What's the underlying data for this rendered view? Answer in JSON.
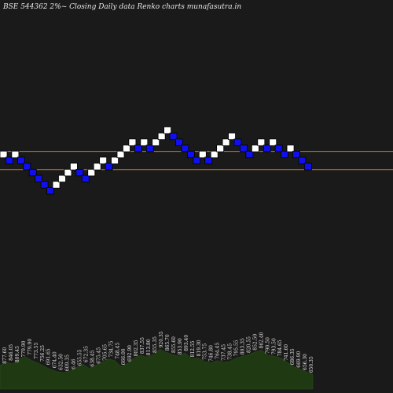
{
  "chart_data": {
    "type": "renko",
    "title": "BSE 544362  2%~  Closing Daily data  Renko  charts munafasutra.in",
    "box_size_pct": 2,
    "up_color": "#ffffff",
    "down_color": "#1010ee",
    "background": "#1a1a1a",
    "level_line_color": "#cc7a22",
    "bricks": [
      {
        "dir": "up",
        "level": 0
      },
      {
        "dir": "down",
        "level": -1
      },
      {
        "dir": "up",
        "level": 0
      },
      {
        "dir": "down",
        "level": -1
      },
      {
        "dir": "down",
        "level": -2
      },
      {
        "dir": "down",
        "level": -3
      },
      {
        "dir": "down",
        "level": -4
      },
      {
        "dir": "down",
        "level": -5
      },
      {
        "dir": "down",
        "level": -6
      },
      {
        "dir": "up",
        "level": -5
      },
      {
        "dir": "up",
        "level": -4
      },
      {
        "dir": "up",
        "level": -3
      },
      {
        "dir": "up",
        "level": -2
      },
      {
        "dir": "down",
        "level": -3
      },
      {
        "dir": "down",
        "level": -4
      },
      {
        "dir": "up",
        "level": -3
      },
      {
        "dir": "up",
        "level": -2
      },
      {
        "dir": "up",
        "level": -1
      },
      {
        "dir": "down",
        "level": -2
      },
      {
        "dir": "up",
        "level": -1
      },
      {
        "dir": "up",
        "level": 0
      },
      {
        "dir": "up",
        "level": 1
      },
      {
        "dir": "up",
        "level": 2
      },
      {
        "dir": "down",
        "level": 1
      },
      {
        "dir": "up",
        "level": 2
      },
      {
        "dir": "down",
        "level": 1
      },
      {
        "dir": "up",
        "level": 2
      },
      {
        "dir": "up",
        "level": 3
      },
      {
        "dir": "up",
        "level": 4
      },
      {
        "dir": "down",
        "level": 3
      },
      {
        "dir": "down",
        "level": 2
      },
      {
        "dir": "down",
        "level": 1
      },
      {
        "dir": "down",
        "level": 0
      },
      {
        "dir": "down",
        "level": -1
      },
      {
        "dir": "up",
        "level": 0
      },
      {
        "dir": "down",
        "level": -1
      },
      {
        "dir": "up",
        "level": 0
      },
      {
        "dir": "up",
        "level": 1
      },
      {
        "dir": "up",
        "level": 2
      },
      {
        "dir": "up",
        "level": 3
      },
      {
        "dir": "down",
        "level": 2
      },
      {
        "dir": "down",
        "level": 1
      },
      {
        "dir": "down",
        "level": 0
      },
      {
        "dir": "up",
        "level": 1
      },
      {
        "dir": "up",
        "level": 2
      },
      {
        "dir": "down",
        "level": 1
      },
      {
        "dir": "up",
        "level": 2
      },
      {
        "dir": "down",
        "level": 1
      },
      {
        "dir": "down",
        "level": 0
      },
      {
        "dir": "up",
        "level": 1
      },
      {
        "dir": "down",
        "level": 0
      },
      {
        "dir": "down",
        "level": -1
      },
      {
        "dir": "down",
        "level": -2
      }
    ],
    "level_lines": [
      0.5,
      -2.5
    ],
    "volume_labels": [
      "877.60",
      "846.05",
      "809.45",
      "779.90",
      "779.90",
      "773.55",
      "756.25",
      "691.65",
      "674.40",
      "632.50",
      "609.35",
      "6.46",
      "655.55",
      "672.35",
      "638.45",
      "675.45",
      "705.65",
      "734.75",
      "748.45",
      "666.00",
      "692.90",
      "802.35",
      "837.55",
      "813.80",
      "855.35",
      "920.35",
      "865.70",
      "855.60",
      "853.90",
      "893.40",
      "812.55",
      "819.30",
      "753.75",
      "746.80",
      "764.45",
      "737.45",
      "738.45",
      "795.55",
      "803.35",
      "820.55",
      "852.50",
      "862.40",
      "790.50",
      "793.50",
      "784.65",
      "741.60",
      "686.35",
      "669.90",
      "656.30",
      "650.35"
    ],
    "volume_heights": [
      0.55,
      0.62,
      0.58,
      0.7,
      0.75,
      0.66,
      0.6,
      0.52,
      0.45,
      0.4,
      0.38,
      0.42,
      0.5,
      0.58,
      0.48,
      0.55,
      0.62,
      0.7,
      0.66,
      0.52,
      0.6,
      0.72,
      0.78,
      0.74,
      0.8,
      0.92,
      0.85,
      0.8,
      0.76,
      0.84,
      0.7,
      0.72,
      0.64,
      0.6,
      0.66,
      0.62,
      0.64,
      0.72,
      0.76,
      0.8,
      0.86,
      0.9,
      0.78,
      0.76,
      0.72,
      0.62,
      0.52,
      0.46,
      0.4,
      0.34
    ]
  }
}
